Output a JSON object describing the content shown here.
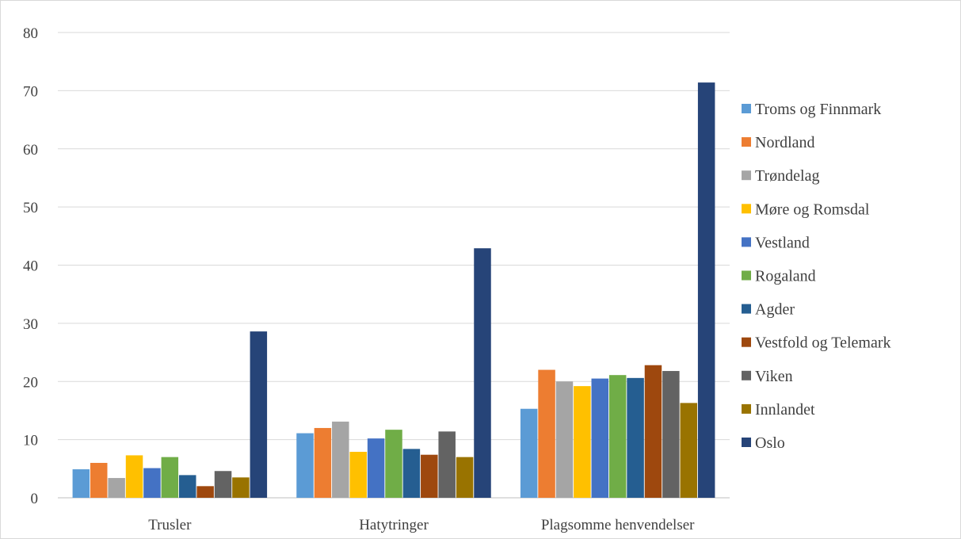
{
  "chart_data": {
    "type": "bar",
    "title": "",
    "xlabel": "",
    "ylabel": "",
    "ylim": [
      0,
      80
    ],
    "yticks": [
      0,
      10,
      20,
      30,
      40,
      50,
      60,
      70,
      80
    ],
    "grid": true,
    "legend_position": "right",
    "categories": [
      "Trusler",
      "Hatytringer",
      "Plagsomme henvendelser"
    ],
    "series": [
      {
        "name": "Troms og Finnmark",
        "color": "#5b9bd5",
        "values": [
          4.9,
          11.1,
          15.3
        ]
      },
      {
        "name": "Nordland",
        "color": "#ed7d31",
        "values": [
          6.0,
          12.0,
          22.0
        ]
      },
      {
        "name": "Trøndelag",
        "color": "#a5a5a5",
        "values": [
          3.4,
          13.1,
          20.0
        ]
      },
      {
        "name": "Møre og Romsdal",
        "color": "#ffc000",
        "values": [
          7.3,
          7.9,
          19.2
        ]
      },
      {
        "name": "Vestland",
        "color": "#4472c4",
        "values": [
          5.1,
          10.2,
          20.5
        ]
      },
      {
        "name": "Rogaland",
        "color": "#70ad47",
        "values": [
          7.0,
          11.7,
          21.1
        ]
      },
      {
        "name": "Agder",
        "color": "#255e91",
        "values": [
          3.9,
          8.4,
          20.6
        ]
      },
      {
        "name": "Vestfold og Telemark",
        "color": "#9e480e",
        "values": [
          2.0,
          7.4,
          22.8
        ]
      },
      {
        "name": "Viken",
        "color": "#636363",
        "values": [
          4.6,
          11.4,
          21.8
        ]
      },
      {
        "name": "Innlandet",
        "color": "#997300",
        "values": [
          3.5,
          7.0,
          16.3
        ]
      },
      {
        "name": "Oslo",
        "color": "#264478",
        "values": [
          28.6,
          42.9,
          71.4
        ]
      }
    ]
  }
}
